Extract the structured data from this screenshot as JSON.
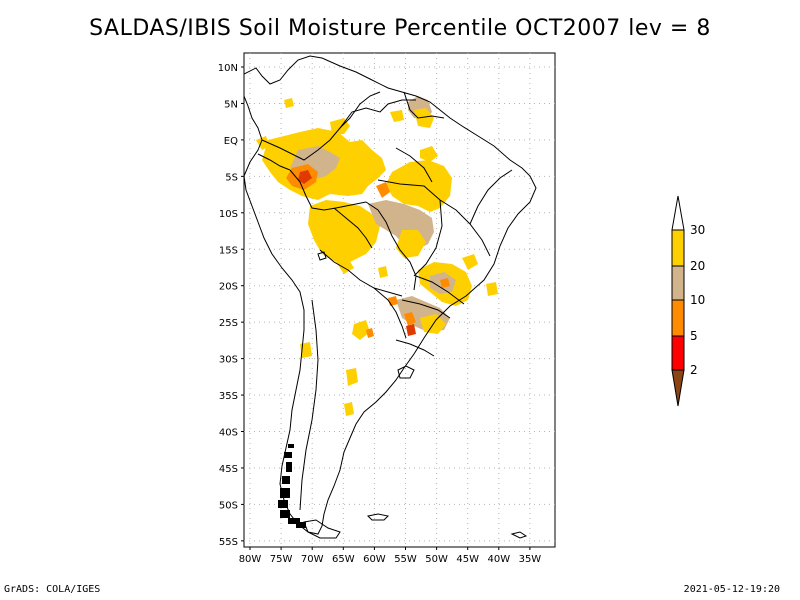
{
  "title": "SALDAS/IBIS Soil Moisture Percentile OCT2007 lev = 8",
  "footer_left": "GrADS: COLA/IGES",
  "footer_right": "2021-05-12-19:20",
  "lat_labels": [
    "10N",
    "5N",
    "EQ",
    "5S",
    "10S",
    "15S",
    "20S",
    "25S",
    "30S",
    "35S",
    "40S",
    "45S",
    "50S",
    "55S"
  ],
  "lon_labels": [
    "80W",
    "75W",
    "70W",
    "65W",
    "60W",
    "55W",
    "50W",
    "45W",
    "40W",
    "35W"
  ],
  "colorbar": {
    "labels": [
      "30",
      "20",
      "10",
      "5",
      "2"
    ],
    "colors": {
      "above30": "#ffffff",
      "20-30": "#ffd000",
      "10-20": "#d2b48c",
      "5-10": "#ff8c00",
      "2-5": "#ff0000",
      "below2": "#8b4513"
    }
  },
  "colors": {
    "coastline": "#000000",
    "grid": "#b4b4b4"
  }
}
